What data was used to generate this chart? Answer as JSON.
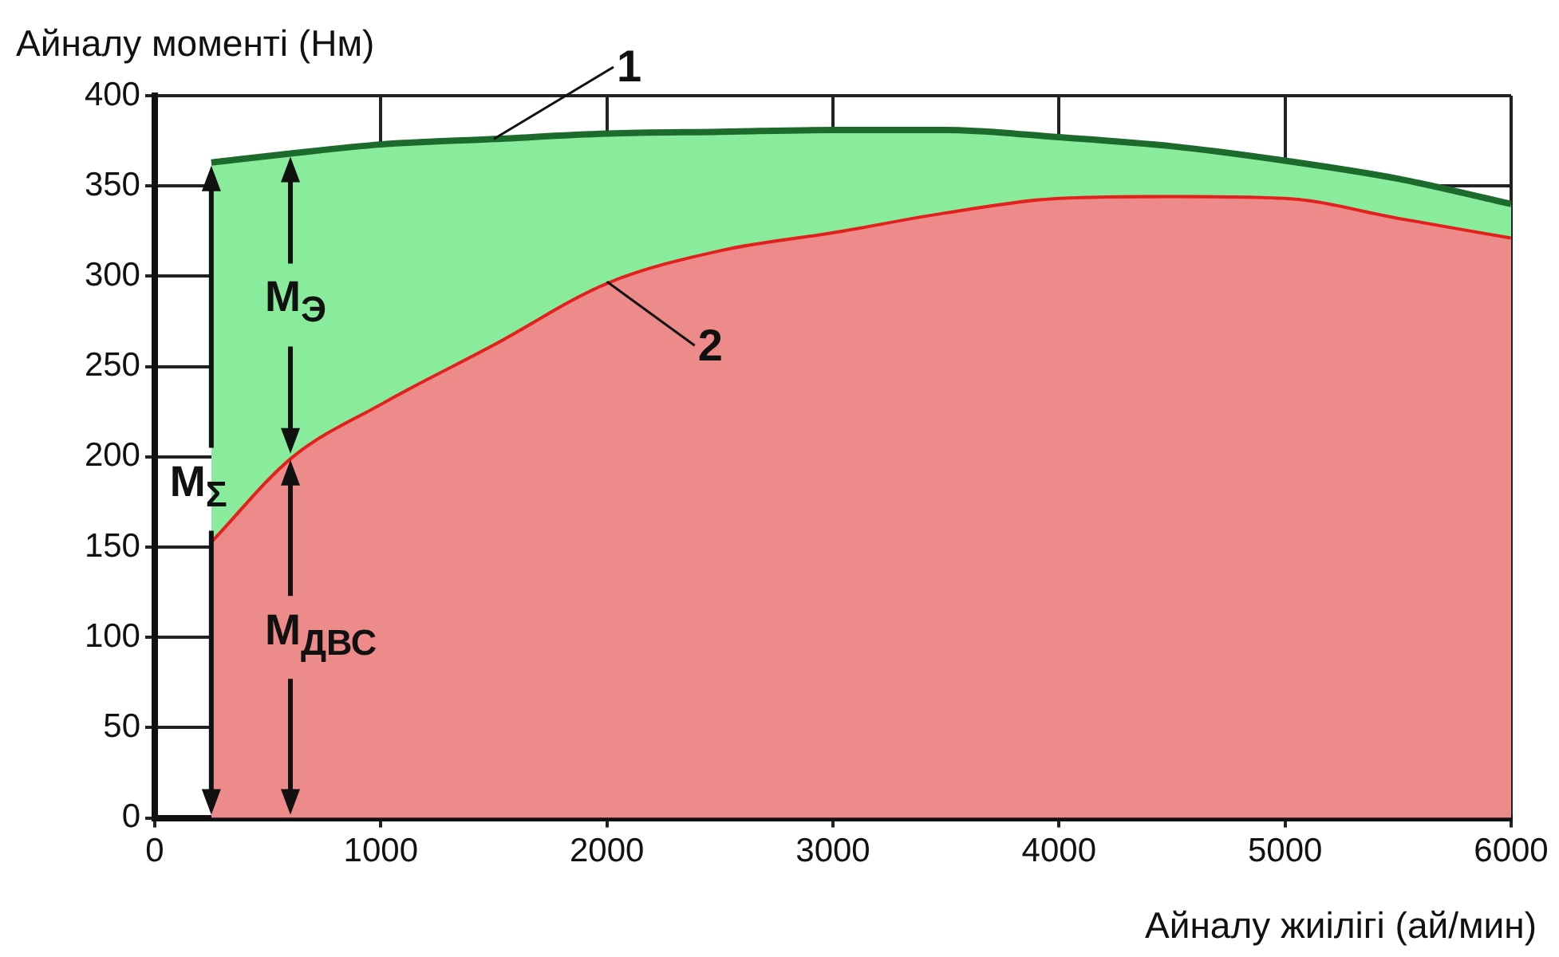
{
  "chart_data": {
    "type": "area",
    "xlabel": "Айналу жиілігі (ай/мин)",
    "ylabel": "Айналу моменті (Нм)",
    "x": [
      250,
      600,
      1000,
      1500,
      2000,
      2500,
      3000,
      3500,
      4000,
      4500,
      5000,
      5500,
      6000
    ],
    "series": [
      {
        "color": "#1d6b2c",
        "values": [
          363,
          368,
          373,
          376,
          379,
          380,
          381,
          381,
          377,
          372,
          364,
          354,
          340
        ]
      },
      {
        "color": "#e3201b",
        "values": [
          154,
          200,
          230,
          263,
          297,
          315,
          325,
          336,
          344,
          345,
          344,
          333,
          322
        ]
      }
    ],
    "annotations": [
      {
        "text": "1",
        "x": 1500,
        "y": 376
      },
      {
        "text": "2",
        "x": 2000,
        "y": 297
      },
      {
        "text": "M$_{Σ}$",
        "x": 250,
        "y": 182
      },
      "M$_{Э}$",
      "M$_{ДВС}$"
    ],
    "xlim": [
      0,
      6000
    ],
    "ylim": [
      0,
      400
    ],
    "xticks": [
      0,
      1000,
      2000,
      3000,
      4000,
      5000,
      6000
    ],
    "yticks": [
      0,
      50,
      100,
      150,
      200,
      250,
      300,
      350,
      400
    ],
    "grid": true,
    "legend": false,
    "marker": "none",
    "line_style": "solid"
  }
}
